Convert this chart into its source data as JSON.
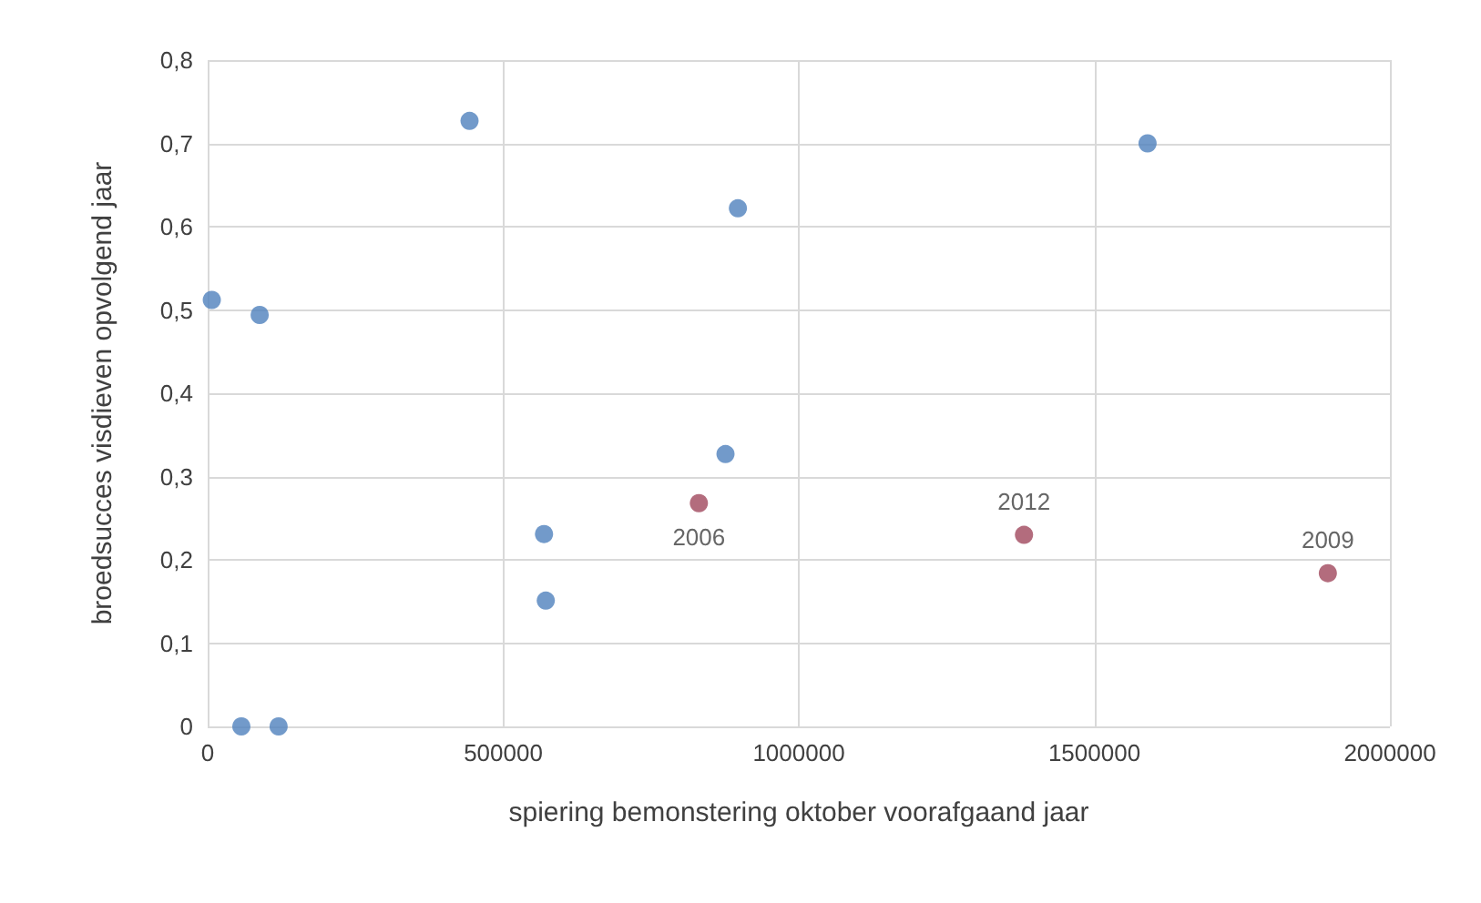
{
  "chart_data": {
    "type": "scatter",
    "xlabel": "spiering bemonstering oktober voorafgaand jaar",
    "ylabel": "broedsucces visdieven opvolgend jaar",
    "series": [
      {
        "color": "#4f81bd",
        "x": [
          7000,
          88000,
          57000,
          120000,
          443000,
          569000,
          572000,
          897000,
          876000,
          1590000
        ],
        "values": [
          0.512,
          0.494,
          0,
          0,
          0.727,
          0.231,
          0.151,
          0.622,
          0.327,
          0.7
        ]
      },
      {
        "color": "#a0475c",
        "x": [
          831000,
          1381000,
          1895000
        ],
        "values": [
          0.268,
          0.23,
          0.184
        ]
      }
    ],
    "annotations": [
      {
        "text": "2006",
        "x": 831000,
        "y": 0.268
      },
      {
        "text": "2012",
        "x": 1381000,
        "y": 0.23
      },
      {
        "text": "2009",
        "x": 1895000,
        "y": 0.184
      }
    ],
    "xlim": [
      0,
      2000000
    ],
    "xticks": [
      0,
      500000,
      1000000,
      1500000,
      2000000
    ],
    "ylim": [
      0,
      0.8
    ],
    "yticks": [
      {
        "value": 0,
        "label": "0"
      },
      {
        "value": 0.1,
        "label": "0,1"
      },
      {
        "value": 0.2,
        "label": "0,2"
      },
      {
        "value": 0.3,
        "label": "0,3"
      },
      {
        "value": 0.4,
        "label": "0,4"
      },
      {
        "value": 0.5,
        "label": "0,5"
      },
      {
        "value": 0.6,
        "label": "0,6"
      },
      {
        "value": 0.7,
        "label": "0,7"
      },
      {
        "value": 0.8,
        "label": "0,8"
      }
    ],
    "grid": true,
    "marker": "circle"
  }
}
